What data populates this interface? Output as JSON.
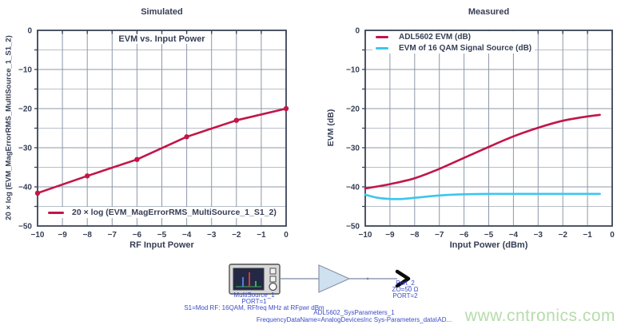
{
  "colors": {
    "crimson": "#c11648",
    "cyan": "#3cc6ee",
    "axis": "#3a4358",
    "grid_major": "#8e97a9",
    "grid_minor": "#b9bec9",
    "text": "#363e55"
  },
  "chart_data": [
    {
      "type": "line",
      "title": "Simulated",
      "inner_title": "EVM vs. Input Power",
      "xlabel": "RF Input Power",
      "ylabel": "20 × log (EVM_MagErrorRMS_MultiSource_1_S1_2)",
      "xlim": [
        -10,
        0
      ],
      "ylim": [
        -50,
        0
      ],
      "xticks": [
        -10,
        -9,
        -8,
        -7,
        -6,
        -5,
        -4,
        -3,
        -2,
        -1,
        0
      ],
      "yticks": [
        0,
        -10,
        -20,
        -30,
        -40,
        -50
      ],
      "grid": {
        "x_step": 1,
        "y_step": 5
      },
      "legend_position": "bottom-left-inside",
      "series": [
        {
          "name": "20 × log (EVM_MagErrorRMS_MultiSource_1_S1_2)",
          "color": "#c11648",
          "marker": true,
          "smooth": false,
          "x": [
            -10,
            -8,
            -6,
            -4,
            -2,
            0
          ],
          "y": [
            -41.6,
            -37.2,
            -33.0,
            -27.2,
            -23.0,
            -20.0
          ]
        }
      ]
    },
    {
      "type": "line",
      "title": "Measured",
      "xlabel": "Input Power (dBm)",
      "ylabel": "EVM (dB)",
      "xlim": [
        -10,
        0
      ],
      "ylim": [
        -50,
        0
      ],
      "xticks": [
        -10,
        -9,
        -8,
        -7,
        -6,
        -5,
        -4,
        -3,
        -2,
        -1,
        0
      ],
      "yticks": [
        0,
        -10,
        -20,
        -30,
        -40,
        -50
      ],
      "grid": {
        "x_step": 1,
        "y_step": 5
      },
      "legend_position": "top-left-inside",
      "series": [
        {
          "name": "ADL5602 EVM (dB)",
          "color": "#c11648",
          "marker": false,
          "smooth": true,
          "x": [
            -10,
            -9,
            -8,
            -7,
            -6,
            -5,
            -4,
            -3,
            -2,
            -1,
            -0.5
          ],
          "y": [
            -40.4,
            -39.3,
            -37.8,
            -35.4,
            -32.6,
            -29.8,
            -27.1,
            -24.9,
            -23.1,
            -22.0,
            -21.6
          ]
        },
        {
          "name": "EVM of 16 QAM Signal Source (dB)",
          "color": "#3cc6ee",
          "marker": false,
          "smooth": true,
          "x": [
            -10,
            -9.5,
            -9,
            -8.5,
            -8,
            -7,
            -6,
            -5,
            -4,
            -3,
            -2,
            -1,
            -0.5
          ],
          "y": [
            -42.0,
            -42.8,
            -43.1,
            -43.1,
            -42.8,
            -42.2,
            -41.9,
            -41.8,
            -41.8,
            -41.8,
            -41.8,
            -41.8,
            -41.8
          ]
        }
      ]
    }
  ],
  "schematic": {
    "label_color": "#3b4cc8",
    "source": {
      "name": "MultiSource_1",
      "port": "PORT=1",
      "params": "S1=Mod RF: 16QAM, RFfreq MHz at RFpwr dBm"
    },
    "amplifier": {
      "name": "ADL5602_SysParameters_1",
      "params": "FrequencyDataName=AnalogDevicesInc Sys-Parameters_data\\AD..."
    },
    "output_port": {
      "name": "Port_2",
      "impedance": "ZO=50 Ω",
      "port": "PORT=2"
    }
  },
  "watermark": {
    "text": "www.cntronics.com",
    "color": "#b6dcab"
  }
}
